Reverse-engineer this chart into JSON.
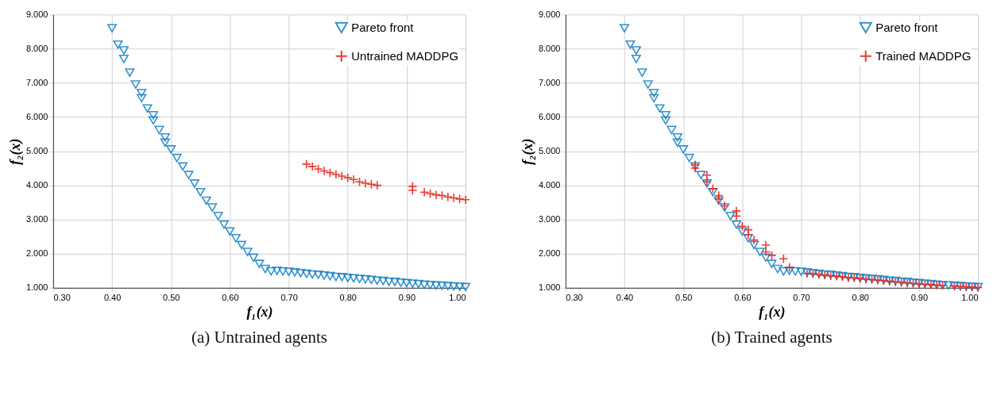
{
  "chart_data": [
    {
      "type": "scatter",
      "xlabel": "f₁(x)",
      "ylabel": "f₂(x)",
      "annotations": [
        "(a) Untrained agents"
      ],
      "xlim": [
        0.3,
        1.0
      ],
      "ylim": [
        1.0,
        9.0
      ],
      "xticks": [
        {
          "value": 0.3,
          "label": "0.30"
        },
        {
          "value": 0.4,
          "label": "0.40"
        },
        {
          "value": 0.5,
          "label": "0.50"
        },
        {
          "value": 0.6,
          "label": "0.60"
        },
        {
          "value": 0.7,
          "label": "0.70"
        },
        {
          "value": 0.8,
          "label": "0.80"
        },
        {
          "value": 0.9,
          "label": "0.90"
        },
        {
          "value": 1.0,
          "label": "1.00"
        }
      ],
      "yticks": [
        {
          "value": 1,
          "label": "1.000"
        },
        {
          "value": 2,
          "label": "2.000"
        },
        {
          "value": 3,
          "label": "3.000"
        },
        {
          "value": 4,
          "label": "4.000"
        },
        {
          "value": 5,
          "label": "5.000"
        },
        {
          "value": 6,
          "label": "6.000"
        },
        {
          "value": 7,
          "label": "7.000"
        },
        {
          "value": 8,
          "label": "8.000"
        },
        {
          "value": 9,
          "label": "9.000"
        }
      ],
      "grid": true,
      "legend": "top right",
      "series": [
        {
          "name": "Pareto front",
          "color": "#1f86c8",
          "marker": "triangle",
          "x": [
            0.4,
            0.41,
            0.42,
            0.42,
            0.43,
            0.44,
            0.45,
            0.45,
            0.46,
            0.47,
            0.47,
            0.48,
            0.49,
            0.49,
            0.5,
            0.51,
            0.52,
            0.53,
            0.54,
            0.55,
            0.56,
            0.57,
            0.58,
            0.59,
            0.6,
            0.61,
            0.62,
            0.63,
            0.64,
            0.65,
            0.66,
            0.67,
            0.68,
            0.69,
            0.7,
            0.71,
            0.72,
            0.73,
            0.74,
            0.75,
            0.76,
            0.77,
            0.78,
            0.79,
            0.8,
            0.81,
            0.82,
            0.83,
            0.84,
            0.85,
            0.86,
            0.87,
            0.88,
            0.89,
            0.9,
            0.91,
            0.92,
            0.93,
            0.94,
            0.95,
            0.96,
            0.97,
            0.98,
            0.99,
            1.0
          ],
          "values": [
            8.6,
            8.12,
            7.95,
            7.7,
            7.3,
            6.95,
            6.7,
            6.55,
            6.25,
            6.05,
            5.9,
            5.62,
            5.4,
            5.25,
            5.05,
            4.8,
            4.55,
            4.3,
            4.05,
            3.8,
            3.55,
            3.35,
            3.1,
            2.85,
            2.65,
            2.45,
            2.25,
            2.05,
            1.88,
            1.7,
            1.55,
            1.48,
            1.5,
            1.48,
            1.47,
            1.45,
            1.43,
            1.41,
            1.39,
            1.38,
            1.36,
            1.34,
            1.32,
            1.31,
            1.29,
            1.28,
            1.26,
            1.25,
            1.23,
            1.21,
            1.2,
            1.18,
            1.17,
            1.15,
            1.14,
            1.12,
            1.11,
            1.09,
            1.08,
            1.07,
            1.06,
            1.05,
            1.04,
            1.03,
            1.02
          ]
        },
        {
          "name": "Untrained MADDPG",
          "color": "#e8261c",
          "marker": "cross",
          "x": [
            0.73,
            0.74,
            0.75,
            0.76,
            0.77,
            0.78,
            0.79,
            0.8,
            0.81,
            0.82,
            0.83,
            0.84,
            0.85,
            0.91,
            0.91,
            0.93,
            0.94,
            0.95,
            0.96,
            0.97,
            0.98,
            0.99,
            1.0
          ],
          "values": [
            4.62,
            4.55,
            4.48,
            4.42,
            4.37,
            4.32,
            4.27,
            4.22,
            4.17,
            4.1,
            4.06,
            4.03,
            4.0,
            3.97,
            3.85,
            3.8,
            3.76,
            3.72,
            3.7,
            3.66,
            3.63,
            3.6,
            3.58
          ]
        }
      ]
    },
    {
      "type": "scatter",
      "xlabel": "f₁(x)",
      "ylabel": "f₂(x)",
      "annotations": [
        "(b) Trained agents"
      ],
      "xlim": [
        0.3,
        1.0
      ],
      "ylim": [
        1.0,
        9.0
      ],
      "xticks": [
        {
          "value": 0.3,
          "label": "0.30"
        },
        {
          "value": 0.4,
          "label": "0.40"
        },
        {
          "value": 0.5,
          "label": "0.50"
        },
        {
          "value": 0.6,
          "label": "0.60"
        },
        {
          "value": 0.7,
          "label": "0.70"
        },
        {
          "value": 0.8,
          "label": "0.80"
        },
        {
          "value": 0.9,
          "label": "0.90"
        },
        {
          "value": 1.0,
          "label": "1.00"
        }
      ],
      "yticks": [
        {
          "value": 1,
          "label": "1.000"
        },
        {
          "value": 2,
          "label": "2.000"
        },
        {
          "value": 3,
          "label": "3.000"
        },
        {
          "value": 4,
          "label": "4.000"
        },
        {
          "value": 5,
          "label": "5.000"
        },
        {
          "value": 6,
          "label": "6.000"
        },
        {
          "value": 7,
          "label": "7.000"
        },
        {
          "value": 8,
          "label": "8.000"
        },
        {
          "value": 9,
          "label": "9.000"
        }
      ],
      "grid": true,
      "legend": "top right",
      "series": [
        {
          "name": "Pareto front",
          "color": "#1f86c8",
          "marker": "triangle",
          "x": [
            0.4,
            0.41,
            0.42,
            0.42,
            0.43,
            0.44,
            0.45,
            0.45,
            0.46,
            0.47,
            0.47,
            0.48,
            0.49,
            0.49,
            0.5,
            0.51,
            0.52,
            0.53,
            0.54,
            0.55,
            0.56,
            0.57,
            0.58,
            0.59,
            0.6,
            0.61,
            0.62,
            0.63,
            0.64,
            0.65,
            0.66,
            0.67,
            0.68,
            0.69,
            0.7,
            0.71,
            0.72,
            0.73,
            0.74,
            0.75,
            0.76,
            0.77,
            0.78,
            0.79,
            0.8,
            0.81,
            0.82,
            0.83,
            0.84,
            0.85,
            0.86,
            0.87,
            0.88,
            0.89,
            0.9,
            0.91,
            0.92,
            0.93,
            0.94,
            0.95,
            0.96,
            0.97,
            0.98,
            0.99,
            1.0
          ],
          "values": [
            8.6,
            8.12,
            7.95,
            7.7,
            7.3,
            6.95,
            6.7,
            6.55,
            6.25,
            6.05,
            5.9,
            5.62,
            5.4,
            5.25,
            5.05,
            4.8,
            4.55,
            4.3,
            4.05,
            3.8,
            3.55,
            3.35,
            3.1,
            2.85,
            2.65,
            2.45,
            2.25,
            2.05,
            1.88,
            1.7,
            1.55,
            1.48,
            1.5,
            1.48,
            1.47,
            1.45,
            1.43,
            1.41,
            1.39,
            1.38,
            1.36,
            1.34,
            1.32,
            1.31,
            1.29,
            1.28,
            1.26,
            1.25,
            1.23,
            1.21,
            1.2,
            1.18,
            1.17,
            1.15,
            1.14,
            1.12,
            1.11,
            1.09,
            1.08,
            1.07,
            1.06,
            1.05,
            1.04,
            1.03,
            1.02
          ]
        },
        {
          "name": "Trained MADDPG",
          "color": "#e8261c",
          "marker": "cross",
          "x": [
            0.52,
            0.52,
            0.54,
            0.54,
            0.55,
            0.56,
            0.56,
            0.57,
            0.59,
            0.59,
            0.6,
            0.61,
            0.61,
            0.62,
            0.64,
            0.64,
            0.65,
            0.67,
            0.68,
            0.71,
            0.72,
            0.73,
            0.74,
            0.75,
            0.76,
            0.77,
            0.78,
            0.79,
            0.8,
            0.81,
            0.82,
            0.83,
            0.84,
            0.85,
            0.86,
            0.87,
            0.88,
            0.89,
            0.9,
            0.91,
            0.92,
            0.93,
            0.94,
            0.96,
            0.97,
            0.98,
            0.99,
            1.0
          ],
          "values": [
            4.6,
            4.5,
            4.3,
            4.1,
            3.9,
            3.7,
            3.6,
            3.4,
            3.25,
            3.1,
            2.8,
            2.7,
            2.55,
            2.4,
            2.25,
            2.05,
            1.95,
            1.85,
            1.6,
            1.42,
            1.41,
            1.39,
            1.37,
            1.35,
            1.34,
            1.32,
            1.3,
            1.29,
            1.27,
            1.25,
            1.24,
            1.22,
            1.21,
            1.19,
            1.17,
            1.16,
            1.14,
            1.13,
            1.11,
            1.1,
            1.09,
            1.08,
            1.07,
            1.05,
            1.04,
            1.03,
            1.02,
            1.01
          ]
        }
      ]
    }
  ]
}
